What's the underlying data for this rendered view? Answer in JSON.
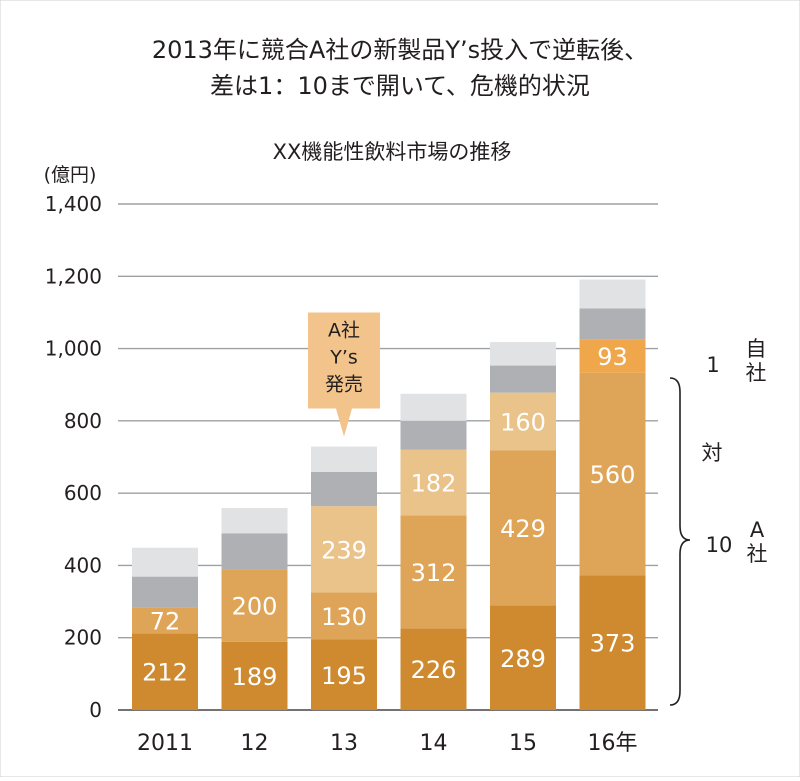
{
  "headline": {
    "line1": "2013年に競合A社の新製品Y’s投入で逆転後、",
    "line2": "差は1：10まで開いて、危機的状況"
  },
  "colors": {
    "a_dark": "#CF8A30",
    "a_mid": "#DEA558",
    "a_light": "#E9C38A",
    "own": "#F0A64A",
    "others_dark": "#AEB0B3",
    "others_light": "#E1E2E4",
    "grid": "#9EA0A3",
    "text": "#231F20",
    "label_on_bar": "#FFFFFF",
    "callout": "#F2C38A"
  },
  "chart_data": {
    "type": "bar",
    "stacked": true,
    "title": "XX機能性飲料市場の推移",
    "ylabel": "(億円)",
    "xlabel": "",
    "ylim": [
      0,
      1400
    ],
    "y_ticks": [
      0,
      200,
      400,
      600,
      800,
      1000,
      1200,
      1400
    ],
    "y_tick_labels": [
      "0",
      "200",
      "400",
      "600",
      "800",
      "1,000",
      "1,200",
      "1,400"
    ],
    "grid": true,
    "categories": [
      "2011",
      "12",
      "13",
      "14",
      "15",
      "16年"
    ],
    "series": [
      {
        "key": "a_dark",
        "values": [
          212,
          189,
          195,
          226,
          289,
          373
        ],
        "show_labels": true
      },
      {
        "key": "a_mid",
        "values": [
          72,
          200,
          130,
          312,
          429,
          560
        ],
        "show_labels": true
      },
      {
        "key": "a_light",
        "values": [
          null,
          null,
          239,
          182,
          160,
          null
        ],
        "show_labels": true
      },
      {
        "key": "own",
        "values": [
          null,
          null,
          null,
          null,
          null,
          93
        ],
        "show_labels": true
      },
      {
        "key": "others_dark",
        "values": [
          85,
          100,
          95,
          80,
          75,
          85
        ],
        "show_labels": false
      },
      {
        "key": "others_light",
        "values": [
          80,
          70,
          70,
          75,
          65,
          80
        ],
        "show_labels": false
      }
    ],
    "callout": {
      "category": "13",
      "lines": [
        "A社",
        "Y’s",
        "発売"
      ]
    },
    "brace": {
      "own_number": "1",
      "own_label": [
        "自",
        "社"
      ],
      "middle": "対",
      "a_number": "10",
      "a_label": [
        "A",
        "社"
      ]
    }
  }
}
